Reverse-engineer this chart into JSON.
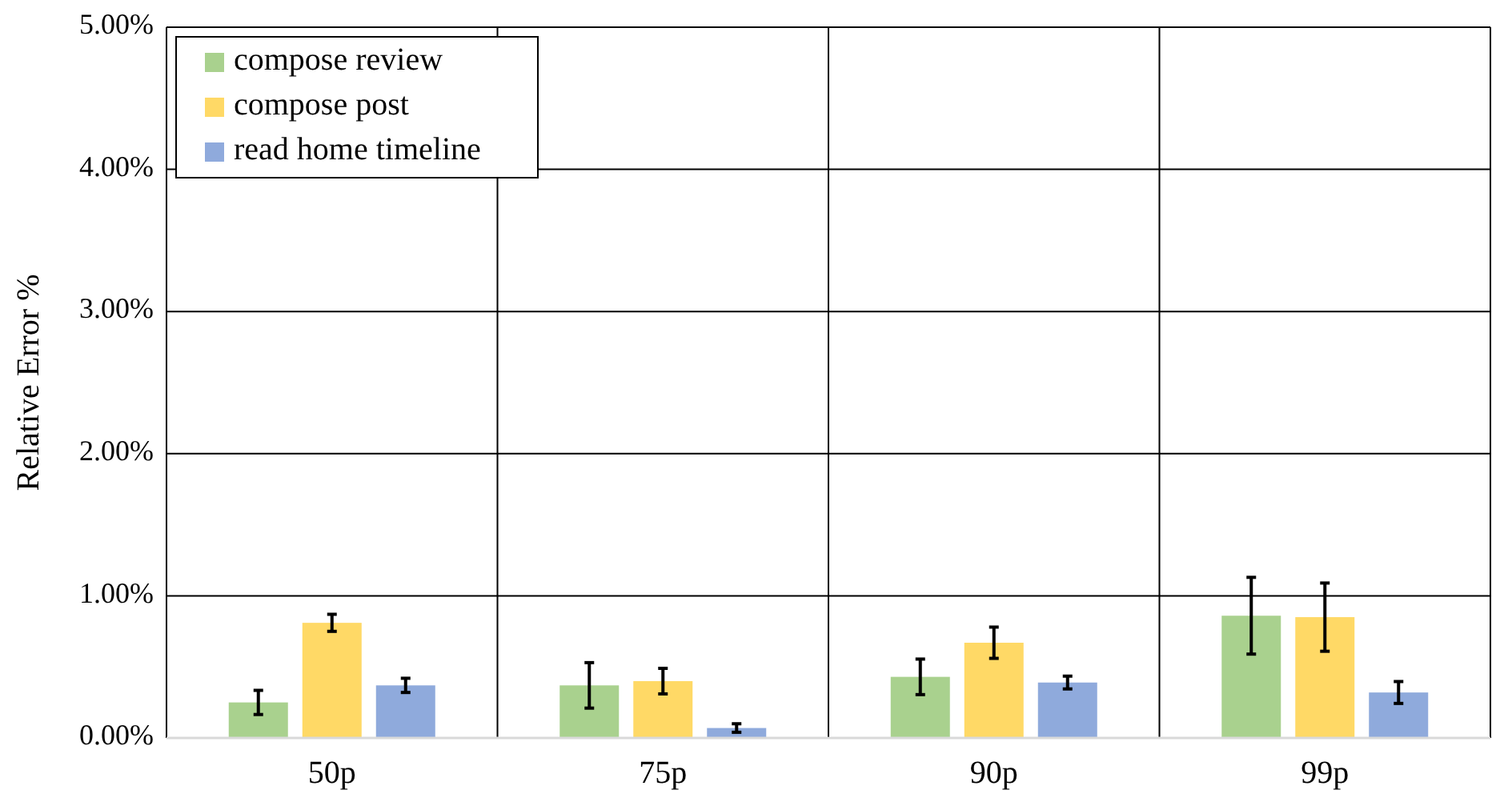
{
  "chart_data": {
    "type": "bar",
    "ylabel": "Relative Error %",
    "categories": [
      "50p",
      "75p",
      "90p",
      "99p"
    ],
    "series": [
      {
        "name": "compose review",
        "color": "#a9d18e",
        "values": [
          0.25,
          0.37,
          0.43,
          0.86
        ],
        "errors": [
          0.085,
          0.16,
          0.125,
          0.27
        ]
      },
      {
        "name": "compose post",
        "color": "#ffd966",
        "values": [
          0.81,
          0.4,
          0.67,
          0.85
        ],
        "errors": [
          0.06,
          0.09,
          0.11,
          0.24
        ]
      },
      {
        "name": "read home timeline",
        "color": "#8faadc",
        "values": [
          0.37,
          0.07,
          0.39,
          0.32
        ],
        "errors": [
          0.05,
          0.03,
          0.045,
          0.077
        ]
      }
    ],
    "ylim": [
      0,
      5
    ],
    "yticks": [
      {
        "value": 0,
        "label": "0.00%"
      },
      {
        "value": 1,
        "label": "1.00%"
      },
      {
        "value": 2,
        "label": "2.00%"
      },
      {
        "value": 3,
        "label": "3.00%"
      },
      {
        "value": 4,
        "label": "4.00%"
      },
      {
        "value": 5,
        "label": "5.00%"
      }
    ],
    "grid": true,
    "legend": "top left"
  }
}
